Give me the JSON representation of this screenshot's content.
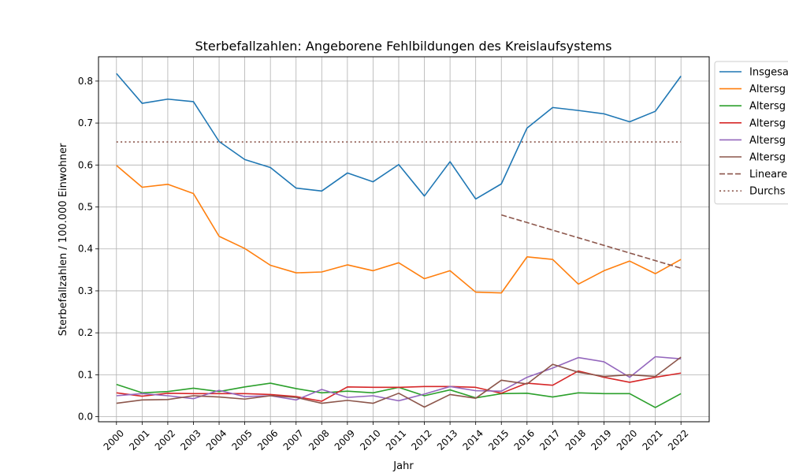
{
  "chart_data": {
    "type": "line",
    "title": "Sterbefallzahlen: Angeborene Fehlbildungen des Kreislaufsystems",
    "xlabel": "Jahr",
    "ylabel": "Sterbefallzahlen / 100.000 Einwohner",
    "x": [
      "2000",
      "2001",
      "2002",
      "2003",
      "2004",
      "2005",
      "2006",
      "2007",
      "2008",
      "2009",
      "2010",
      "2011",
      "2012",
      "2013",
      "2014",
      "2015",
      "2016",
      "2017",
      "2018",
      "2019",
      "2020",
      "2021",
      "2022"
    ],
    "xlim": [
      1999.3,
      2023.1
    ],
    "ylim": [
      -0.012,
      0.858
    ],
    "yticks": [
      0.0,
      0.1,
      0.2,
      0.3,
      0.4,
      0.5,
      0.6,
      0.7,
      0.8
    ],
    "ytick_labels": [
      "0.0",
      "0.1",
      "0.2",
      "0.3",
      "0.4",
      "0.5",
      "0.6",
      "0.7",
      "0.8"
    ],
    "grid": true,
    "legend_position": "outside-right-top",
    "series": [
      {
        "name": "Insgesa",
        "color": "#1f77b4",
        "style": "solid",
        "values": [
          0.818,
          0.747,
          0.757,
          0.751,
          0.656,
          0.613,
          0.594,
          0.545,
          0.538,
          0.581,
          0.56,
          0.601,
          0.526,
          0.608,
          0.519,
          0.555,
          0.688,
          0.737,
          0.73,
          0.722,
          0.703,
          0.728,
          0.812
        ]
      },
      {
        "name": "Altersg",
        "color": "#ff7f0e",
        "style": "solid",
        "values": [
          0.599,
          0.547,
          0.554,
          0.532,
          0.43,
          0.401,
          0.361,
          0.343,
          0.345,
          0.362,
          0.348,
          0.367,
          0.329,
          0.348,
          0.297,
          0.295,
          0.381,
          0.375,
          0.316,
          0.348,
          0.371,
          0.341,
          0.375
        ]
      },
      {
        "name": "Altersg",
        "color": "#2ca02c",
        "style": "solid",
        "values": [
          0.077,
          0.057,
          0.06,
          0.068,
          0.06,
          0.071,
          0.08,
          0.067,
          0.057,
          0.061,
          0.057,
          0.07,
          0.05,
          0.064,
          0.045,
          0.055,
          0.056,
          0.047,
          0.057,
          0.055,
          0.055,
          0.022,
          0.055
        ]
      },
      {
        "name": "Altersg",
        "color": "#d62728",
        "style": "solid",
        "values": [
          0.057,
          0.049,
          0.056,
          0.055,
          0.055,
          0.055,
          0.053,
          0.048,
          0.037,
          0.071,
          0.07,
          0.07,
          0.072,
          0.072,
          0.07,
          0.056,
          0.08,
          0.075,
          0.109,
          0.094,
          0.082,
          0.094,
          0.104
        ]
      },
      {
        "name": "Altersg",
        "color": "#9467bd",
        "style": "solid",
        "values": [
          0.05,
          0.055,
          0.05,
          0.043,
          0.063,
          0.048,
          0.05,
          0.04,
          0.065,
          0.046,
          0.05,
          0.038,
          0.054,
          0.072,
          0.062,
          0.061,
          0.094,
          0.116,
          0.141,
          0.131,
          0.094,
          0.143,
          0.138
        ]
      },
      {
        "name": "Altersg",
        "color": "#8c564b",
        "style": "solid",
        "values": [
          0.032,
          0.04,
          0.041,
          0.05,
          0.047,
          0.042,
          0.05,
          0.046,
          0.032,
          0.039,
          0.032,
          0.056,
          0.023,
          0.053,
          0.044,
          0.087,
          0.078,
          0.125,
          0.106,
          0.096,
          0.1,
          0.096,
          0.142
        ]
      },
      {
        "name": "Lineare",
        "color": "#8c564b",
        "style": "dashed",
        "x": [
          "2015",
          "2022"
        ],
        "values": [
          0.481,
          0.354
        ]
      },
      {
        "name": "Durchs",
        "color": "#8c564b",
        "style": "dotted",
        "x": [
          "2000",
          "2022"
        ],
        "values": [
          0.655,
          0.655
        ]
      }
    ]
  }
}
